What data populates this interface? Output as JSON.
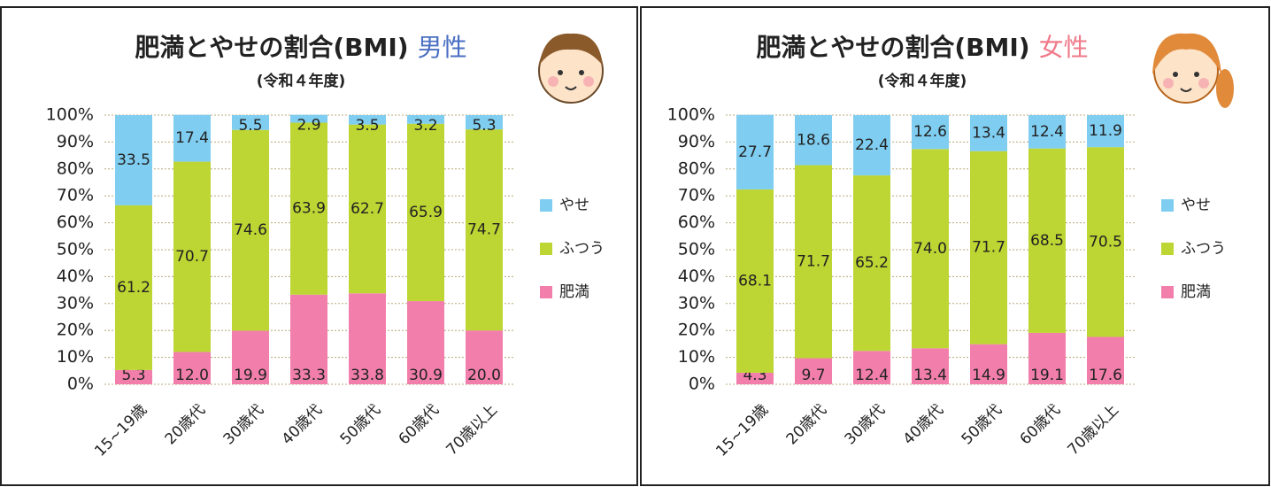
{
  "chart_data": [
    {
      "type": "stacked_bar",
      "title": "肥満とやせの割合(BMI)",
      "title_tag": "男性",
      "title_tag_color": "#4a6fc2",
      "subtitle": "(令和４年度)",
      "categories": [
        "15~19歳",
        "20歳代",
        "30歳代",
        "40歳代",
        "50歳代",
        "60歳代",
        "70歳以上"
      ],
      "series": [
        {
          "name": "やせ",
          "color": "#7fcdf0",
          "values": [
            33.5,
            17.4,
            5.5,
            2.9,
            3.5,
            3.2,
            5.3
          ],
          "value_labels": [
            "33.5",
            "17.4",
            "5.5",
            "2.9",
            "3.5",
            "3.2",
            "5.3"
          ]
        },
        {
          "name": "ふつう",
          "color": "#bdd633",
          "values": [
            61.2,
            70.7,
            74.6,
            63.9,
            62.7,
            65.9,
            74.7
          ],
          "value_labels": [
            "61.2",
            "70.7",
            "74.6",
            "63.9",
            "62.7",
            "65.9",
            "74.7"
          ]
        },
        {
          "name": "肥満",
          "color": "#f27fab",
          "values": [
            5.3,
            12.0,
            19.9,
            33.3,
            33.8,
            30.9,
            20.0
          ],
          "value_labels": [
            "5.3",
            "12.0",
            "19.9",
            "33.3",
            "33.8",
            "30.9",
            "20.0"
          ]
        }
      ],
      "ylim": [
        0,
        100
      ],
      "yticks": [
        {
          "value": 0,
          "label": "0%"
        },
        {
          "value": 10,
          "label": "10%"
        },
        {
          "value": 20,
          "label": "20%"
        },
        {
          "value": 30,
          "label": "30%"
        },
        {
          "value": 40,
          "label": "40%"
        },
        {
          "value": 50,
          "label": "50%"
        },
        {
          "value": 60,
          "label": "60%"
        },
        {
          "value": 70,
          "label": "70%"
        },
        {
          "value": 80,
          "label": "80%"
        },
        {
          "value": 90,
          "label": "90%"
        },
        {
          "value": 100,
          "label": "100%"
        }
      ],
      "grid": true,
      "legend": "right"
    },
    {
      "type": "stacked_bar",
      "title": "肥満とやせの割合(BMI)",
      "title_tag": "女性",
      "title_tag_color": "#f07a8a",
      "subtitle": "(令和４年度)",
      "categories": [
        "15~19歳",
        "20歳代",
        "30歳代",
        "40歳代",
        "50歳代",
        "60歳代",
        "70歳以上"
      ],
      "series": [
        {
          "name": "やせ",
          "color": "#7fcdf0",
          "values": [
            27.7,
            18.6,
            22.4,
            12.6,
            13.4,
            12.4,
            11.9
          ],
          "value_labels": [
            "27.7",
            "18.6",
            "22.4",
            "12.6",
            "13.4",
            "12.4",
            "11.9"
          ]
        },
        {
          "name": "ふつう",
          "color": "#bdd633",
          "values": [
            68.1,
            71.7,
            65.2,
            74.0,
            71.7,
            68.5,
            70.5
          ],
          "value_labels": [
            "68.1",
            "71.7",
            "65.2",
            "74.0",
            "71.7",
            "68.5",
            "70.5"
          ]
        },
        {
          "name": "肥満",
          "color": "#f27fab",
          "values": [
            4.3,
            9.7,
            12.4,
            13.4,
            14.9,
            19.1,
            17.6
          ],
          "value_labels": [
            "4.3",
            "9.7",
            "12.4",
            "13.4",
            "14.9",
            "19.1",
            "17.6"
          ]
        }
      ],
      "ylim": [
        0,
        100
      ],
      "yticks": [
        {
          "value": 0,
          "label": "0%"
        },
        {
          "value": 10,
          "label": "10%"
        },
        {
          "value": 20,
          "label": "20%"
        },
        {
          "value": 30,
          "label": "30%"
        },
        {
          "value": 40,
          "label": "40%"
        },
        {
          "value": 50,
          "label": "50%"
        },
        {
          "value": 60,
          "label": "60%"
        },
        {
          "value": 70,
          "label": "70%"
        },
        {
          "value": 80,
          "label": "80%"
        },
        {
          "value": 90,
          "label": "90%"
        },
        {
          "value": 100,
          "label": "100%"
        }
      ],
      "grid": true,
      "legend": "right"
    }
  ]
}
